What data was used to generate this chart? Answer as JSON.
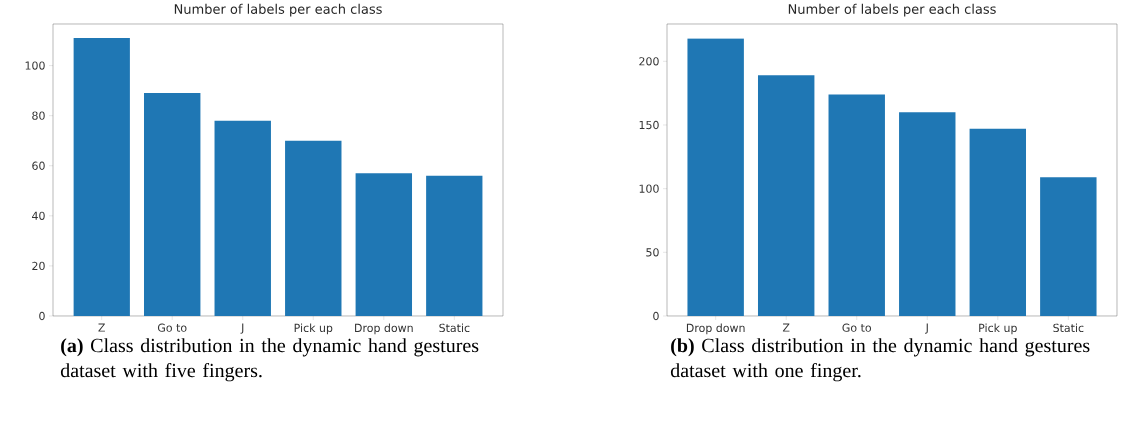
{
  "chart_data": [
    {
      "type": "bar",
      "title": "Number of labels per each class",
      "categories": [
        "Z",
        "Go to",
        "J",
        "Pick up",
        "Drop down",
        "Static"
      ],
      "values": [
        111,
        89,
        78,
        70,
        57,
        56
      ],
      "color": "#1f77b4",
      "ylim": [
        0,
        116.6
      ],
      "yticks": [
        0,
        20,
        40,
        60,
        80,
        100
      ],
      "grid": false,
      "annotations": [
        "**(a)** Class distribution in the dynamic hand gestures dataset with five fingers."
      ]
    },
    {
      "type": "bar",
      "title": "Number of labels per each class",
      "categories": [
        "Drop down",
        "Z",
        "Go to",
        "J",
        "Pick up",
        "Static"
      ],
      "values": [
        218,
        189,
        174,
        160,
        147,
        109
      ],
      "color": "#1f77b4",
      "ylim": [
        0,
        229.3
      ],
      "yticks": [
        0,
        50,
        100,
        150,
        200
      ],
      "grid": false,
      "annotations": [
        "**(b)** Class distribution in the dynamic hand gestures dataset with one finger."
      ]
    }
  ]
}
